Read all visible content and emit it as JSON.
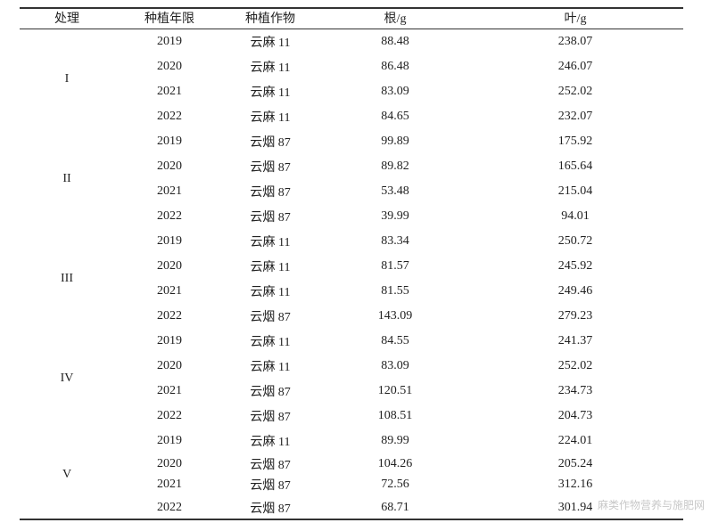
{
  "table": {
    "header": [
      "处理",
      "种植年限",
      "种植作物",
      "根/g",
      "叶/g"
    ],
    "groups": [
      {
        "label": "I",
        "rows": [
          [
            2019,
            "云麻 11",
            88.48,
            238.07
          ],
          [
            2020,
            "云麻 11",
            86.48,
            246.07
          ],
          [
            2021,
            "云麻 11",
            83.09,
            252.02
          ],
          [
            2022,
            "云麻 11",
            84.65,
            232.07
          ]
        ]
      },
      {
        "label": "II",
        "rows": [
          [
            2019,
            "云烟 87",
            99.89,
            175.92
          ],
          [
            2020,
            "云烟 87",
            89.82,
            165.64
          ],
          [
            2021,
            "云烟 87",
            53.48,
            215.04
          ],
          [
            2022,
            "云烟 87",
            39.99,
            94.01
          ]
        ]
      },
      {
        "label": "III",
        "rows": [
          [
            2019,
            "云麻 11",
            83.34,
            250.72
          ],
          [
            2020,
            "云麻 11",
            81.57,
            245.92
          ],
          [
            2021,
            "云麻 11",
            81.55,
            249.46
          ],
          [
            2022,
            "云烟 87",
            143.09,
            279.23
          ]
        ]
      },
      {
        "label": "IV",
        "rows": [
          [
            2019,
            "云麻 11",
            84.55,
            241.37
          ],
          [
            2020,
            "云麻 11",
            83.09,
            252.02
          ],
          [
            2021,
            "云烟 87",
            120.51,
            234.73
          ],
          [
            2022,
            "云烟 87",
            108.51,
            204.73
          ]
        ]
      },
      {
        "label": "V",
        "rows": [
          [
            2019,
            "云麻 11",
            89.99,
            224.01
          ],
          [
            2020,
            "云烟 87",
            104.26,
            205.24
          ],
          [
            2021,
            "云烟 87",
            72.56,
            312.16
          ],
          [
            2022,
            "云烟 87",
            68.71,
            301.94
          ]
        ]
      }
    ]
  },
  "watermark": "麻类作物营养与施肥网"
}
